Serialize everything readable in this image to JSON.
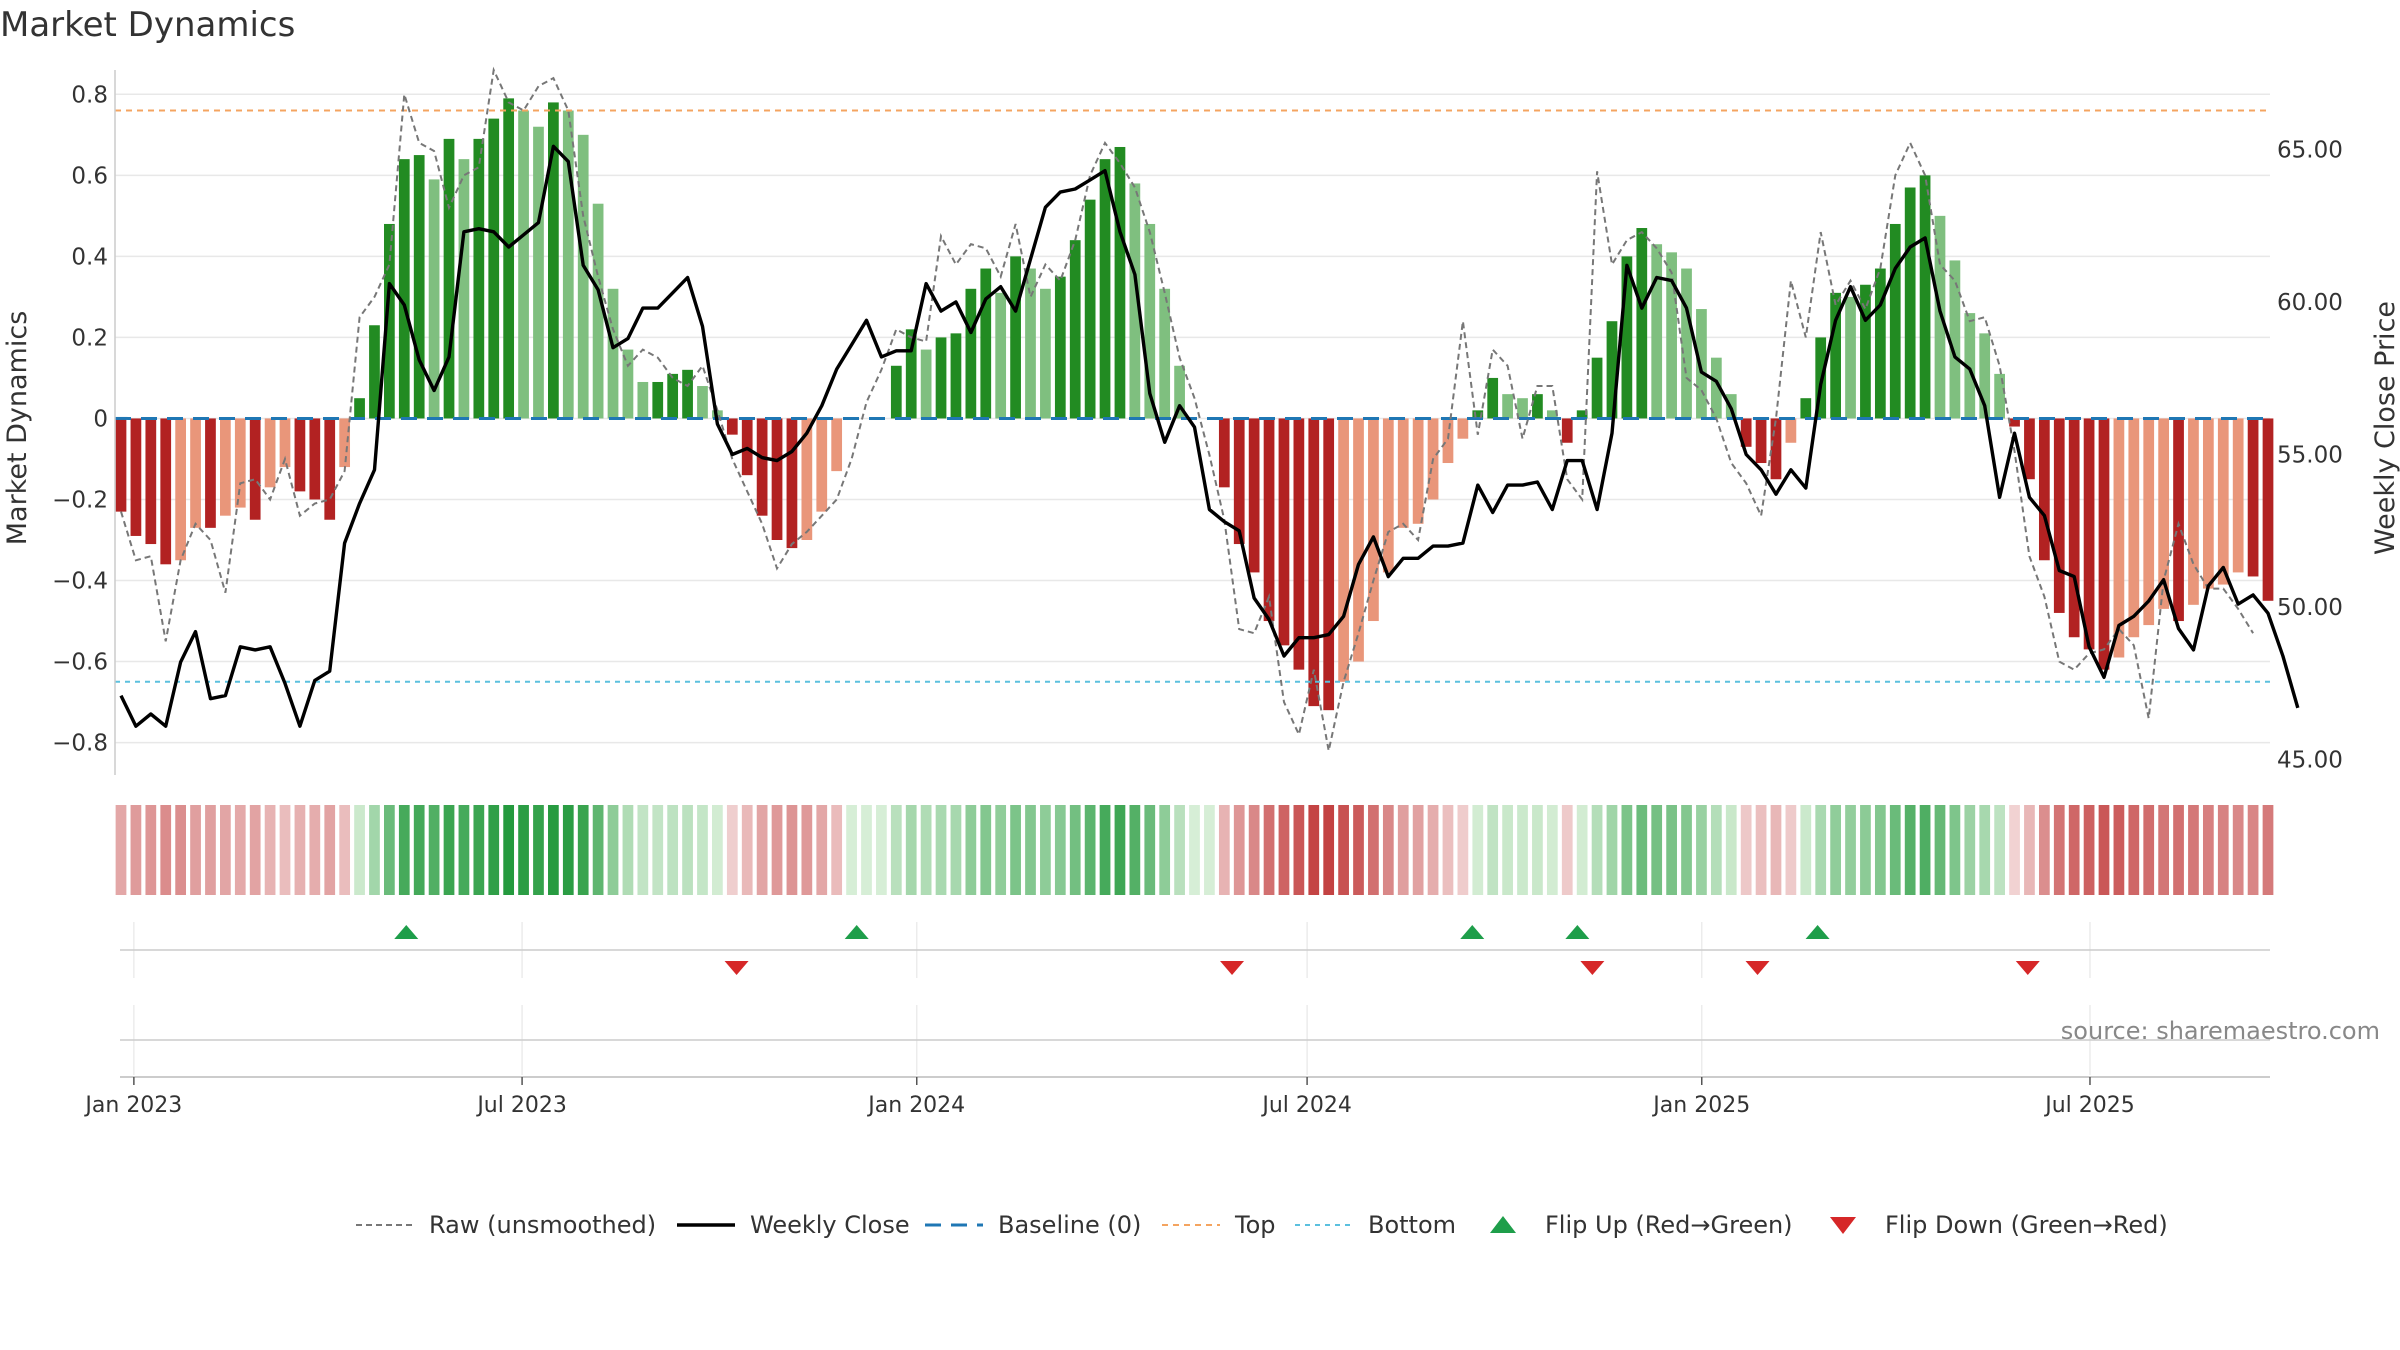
{
  "chart_data": {
    "type": "bar",
    "title": "Market Dynamics",
    "ylabel_left": "Market Dynamics",
    "ylabel_right": "Weekly Close Price",
    "source": "source: sharemaestro.com",
    "ylim_left": [
      -0.88,
      0.86
    ],
    "ylim_right": [
      44.5,
      67.6
    ],
    "yticks_left": [
      0.8,
      0.6,
      0.4,
      0.2,
      0,
      -0.2,
      -0.4,
      -0.6,
      -0.8
    ],
    "yticks_left_labels": [
      "0.8",
      "0.6",
      "0.4",
      "0.2",
      "0",
      "−0.2",
      "−0.4",
      "−0.6",
      "−0.8"
    ],
    "yticks_right": [
      65,
      60,
      55,
      50,
      45
    ],
    "yticks_right_labels": [
      "65.00",
      "60.00",
      "55.00",
      "50.00",
      "45.00"
    ],
    "top_level": 0.76,
    "bottom_level": -0.65,
    "x_start": "2022-12-26",
    "x_end": "2025-09-22",
    "xticks": [
      {
        "date": "2023-01-01",
        "label": "Jan 2023"
      },
      {
        "date": "2023-07-01",
        "label": "Jul 2023"
      },
      {
        "date": "2024-01-01",
        "label": "Jan 2024"
      },
      {
        "date": "2024-07-01",
        "label": "Jul 2024"
      },
      {
        "date": "2025-01-01",
        "label": "Jan 2025"
      },
      {
        "date": "2025-07-01",
        "label": "Jul 2025"
      }
    ],
    "series": [
      {
        "name": "Raw (unsmoothed)",
        "kind": "line",
        "color": "#777777",
        "dash": "dashed",
        "values": [
          -0.23,
          -0.35,
          -0.34,
          -0.55,
          -0.35,
          -0.26,
          -0.3,
          -0.43,
          -0.16,
          -0.15,
          -0.2,
          -0.1,
          -0.24,
          -0.21,
          -0.2,
          -0.13,
          0.25,
          0.3,
          0.38,
          0.8,
          0.68,
          0.66,
          0.52,
          0.6,
          0.62,
          0.86,
          0.78,
          0.76,
          0.82,
          0.84,
          0.76,
          0.5,
          0.35,
          0.22,
          0.13,
          0.17,
          0.15,
          0.1,
          0.08,
          0.13,
          0.02,
          -0.1,
          -0.18,
          -0.26,
          -0.37,
          -0.31,
          -0.28,
          -0.24,
          -0.2,
          -0.1,
          0.04,
          0.12,
          0.22,
          0.2,
          0.19,
          0.45,
          0.38,
          0.43,
          0.42,
          0.35,
          0.48,
          0.3,
          0.38,
          0.34,
          0.44,
          0.6,
          0.68,
          0.63,
          0.57,
          0.46,
          0.31,
          0.15,
          0.05,
          -0.09,
          -0.25,
          -0.52,
          -0.53,
          -0.44,
          -0.7,
          -0.78,
          -0.62,
          -0.82,
          -0.65,
          -0.53,
          -0.4,
          -0.28,
          -0.26,
          -0.3,
          -0.1,
          -0.05,
          0.24,
          -0.04,
          0.17,
          0.13,
          -0.05,
          0.08,
          0.08,
          -0.15,
          -0.2,
          0.61,
          0.38,
          0.44,
          0.46,
          0.42,
          0.36,
          0.1,
          0.07,
          0.0,
          -0.11,
          -0.16,
          -0.24,
          0.0,
          0.34,
          0.2,
          0.46,
          0.28,
          0.34,
          0.27,
          0.37,
          0.6,
          0.68,
          0.6,
          0.38,
          0.34,
          0.24,
          0.25,
          0.13,
          -0.08,
          -0.34,
          -0.44,
          -0.6,
          -0.62,
          -0.58,
          -0.57,
          -0.52,
          -0.56,
          -0.74,
          -0.4,
          -0.26,
          -0.36,
          -0.42,
          -0.42,
          -0.47,
          -0.53
        ]
      },
      {
        "name": "Weekly Close",
        "kind": "line",
        "axis": "right",
        "color": "#000000",
        "values": [
          47.1,
          46.1,
          46.5,
          46.1,
          48.2,
          49.2,
          47.0,
          47.1,
          48.7,
          48.6,
          48.7,
          47.5,
          46.1,
          47.6,
          47.9,
          52.1,
          53.4,
          54.5,
          60.6,
          59.9,
          58.1,
          57.1,
          58.2,
          62.3,
          62.4,
          62.3,
          61.8,
          62.2,
          62.6,
          65.1,
          64.6,
          61.2,
          60.4,
          58.5,
          58.8,
          59.8,
          59.8,
          60.3,
          60.8,
          59.2,
          56.0,
          55.0,
          55.2,
          54.9,
          54.8,
          55.1,
          55.7,
          56.6,
          57.8,
          58.6,
          59.4,
          58.2,
          58.4,
          58.4,
          60.6,
          59.7,
          60.0,
          59.0,
          60.1,
          60.5,
          59.7,
          61.4,
          63.1,
          63.6,
          63.7,
          64.0,
          64.3,
          62.3,
          60.9,
          57.0,
          55.4,
          56.6,
          55.9,
          53.2,
          52.8,
          52.5,
          50.3,
          49.6,
          48.4,
          49.0,
          49.0,
          49.1,
          49.7,
          51.4,
          52.3,
          51.0,
          51.6,
          51.6,
          52.0,
          52.0,
          52.1,
          54.0,
          53.1,
          54.0,
          54.0,
          54.1,
          53.2,
          54.8,
          54.8,
          53.2,
          55.7,
          61.2,
          59.8,
          60.8,
          60.7,
          59.8,
          57.7,
          57.4,
          56.5,
          55.0,
          54.5,
          53.7,
          54.5,
          53.9,
          57.3,
          59.4,
          60.5,
          59.4,
          59.9,
          61.1,
          61.8,
          62.1,
          59.7,
          58.2,
          57.8,
          56.6,
          53.6,
          55.7,
          53.6,
          53.0,
          51.2,
          51.0,
          48.7,
          47.7,
          49.4,
          49.7,
          50.2,
          50.9,
          49.3,
          48.6,
          50.7,
          51.3,
          50.1,
          50.4,
          49.8,
          48.4,
          46.7
        ]
      }
    ],
    "bars": {
      "name": "Market Dynamics",
      "values": [
        -0.23,
        -0.29,
        -0.31,
        -0.36,
        -0.35,
        -0.27,
        -0.27,
        -0.24,
        -0.22,
        -0.25,
        -0.17,
        -0.12,
        -0.18,
        -0.2,
        -0.25,
        -0.12,
        0.05,
        0.23,
        0.48,
        0.64,
        0.65,
        0.59,
        0.69,
        0.64,
        0.69,
        0.74,
        0.79,
        0.76,
        0.72,
        0.78,
        0.76,
        0.7,
        0.53,
        0.32,
        0.17,
        0.09,
        0.09,
        0.11,
        0.12,
        0.08,
        0.02,
        -0.04,
        -0.14,
        -0.24,
        -0.3,
        -0.32,
        -0.3,
        -0.23,
        -0.13,
        0.0,
        0.0,
        0.0,
        0.13,
        0.22,
        0.17,
        0.2,
        0.21,
        0.32,
        0.37,
        0.31,
        0.4,
        0.37,
        0.32,
        0.35,
        0.44,
        0.54,
        0.64,
        0.67,
        0.58,
        0.48,
        0.32,
        0.13,
        0.0,
        0.0,
        -0.17,
        -0.31,
        -0.38,
        -0.5,
        -0.56,
        -0.62,
        -0.71,
        -0.72,
        -0.65,
        -0.6,
        -0.5,
        -0.38,
        -0.27,
        -0.26,
        -0.2,
        -0.11,
        -0.05,
        0.02,
        0.1,
        0.06,
        0.05,
        0.06,
        0.02,
        -0.06,
        0.02,
        0.15,
        0.24,
        0.4,
        0.47,
        0.43,
        0.41,
        0.37,
        0.27,
        0.15,
        0.06,
        -0.07,
        -0.11,
        -0.15,
        -0.06,
        0.05,
        0.2,
        0.31,
        0.3,
        0.33,
        0.37,
        0.48,
        0.57,
        0.6,
        0.5,
        0.39,
        0.26,
        0.21,
        0.11,
        -0.02,
        -0.15,
        -0.35,
        -0.48,
        -0.54,
        -0.57,
        -0.62,
        -0.59,
        -0.54,
        -0.51,
        -0.47,
        -0.5,
        -0.46,
        -0.42,
        -0.41,
        -0.38,
        -0.39,
        -0.45
      ]
    },
    "flips_up": [
      "2023-05-08",
      "2023-12-04",
      "2024-09-16",
      "2024-11-04",
      "2025-02-24"
    ],
    "flips_down": [
      "2023-10-09",
      "2024-05-27",
      "2024-11-11",
      "2025-01-27",
      "2025-06-02"
    ],
    "colors": {
      "pos_strong": "#228B22",
      "pos_light": "#7FBF7F",
      "neg_strong": "#B22222",
      "neg_light": "#E9967A",
      "top_line": "#F4A460",
      "bottom_line": "#5BC0DE",
      "baseline": "#1F77B4",
      "flip_up": "#1E9E4A",
      "flip_down": "#D62728"
    },
    "legend": [
      {
        "key": "raw",
        "label": "Raw (unsmoothed)"
      },
      {
        "key": "close",
        "label": "Weekly Close"
      },
      {
        "key": "baseline",
        "label": "Baseline (0)"
      },
      {
        "key": "top",
        "label": "Top"
      },
      {
        "key": "bottom",
        "label": "Bottom"
      },
      {
        "key": "flipup",
        "label": "Flip Up (Red→Green)"
      },
      {
        "key": "flipdown",
        "label": "Flip Down (Green→Red)"
      }
    ]
  }
}
